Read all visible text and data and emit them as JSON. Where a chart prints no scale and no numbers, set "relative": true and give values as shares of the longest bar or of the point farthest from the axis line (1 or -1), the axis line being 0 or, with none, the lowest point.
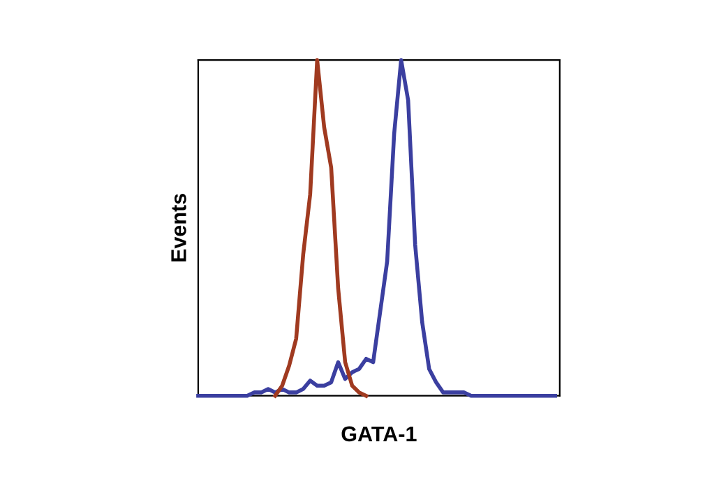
{
  "chart_data": {
    "type": "line",
    "relative": true,
    "xlabel": "GATA-1",
    "ylabel": "Events",
    "line_style": "solid",
    "marker": "none",
    "grid": false,
    "legend": false,
    "categories": [
      null,
      null,
      null,
      null,
      null,
      null,
      null,
      null,
      null,
      null,
      null,
      null,
      null,
      null,
      null,
      null,
      null,
      null,
      null,
      null,
      null,
      null,
      null,
      null,
      null,
      null,
      null,
      null,
      null,
      null,
      null,
      null,
      null,
      null,
      null,
      null,
      null,
      null,
      null,
      null,
      null,
      null,
      null,
      null,
      null,
      null,
      null,
      null,
      null,
      null,
      null,
      null
    ],
    "series": [
      {
        "color": "#3b3fa0",
        "values": [
          0,
          0,
          0,
          0,
          0,
          0,
          0,
          0,
          0.01,
          0.01,
          0.02,
          0.01,
          0.02,
          0.01,
          0.01,
          0.02,
          0.045,
          0.03,
          0.03,
          0.04,
          0.1,
          0.05,
          0.07,
          0.08,
          0.11,
          0.1,
          0.25,
          0.4,
          0.78,
          1.0,
          0.88,
          0.45,
          0.22,
          0.08,
          0.04,
          0.01,
          0.01,
          0.01,
          0.01,
          0,
          0,
          0,
          0,
          0,
          0,
          0,
          0,
          0,
          0,
          0,
          0,
          0
        ]
      },
      {
        "color": "#a03a20",
        "values": [
          null,
          null,
          null,
          null,
          null,
          null,
          null,
          null,
          null,
          null,
          null,
          0,
          0.03,
          0.09,
          0.17,
          0.42,
          0.6,
          1.0,
          0.8,
          0.68,
          0.32,
          0.1,
          0.03,
          0.01,
          0,
          null,
          null,
          null,
          null,
          null,
          null,
          null,
          null,
          null,
          null,
          null,
          null,
          null,
          null,
          null,
          null,
          null,
          null,
          null,
          null,
          null,
          null,
          null,
          null,
          null,
          null,
          null
        ]
      }
    ]
  }
}
